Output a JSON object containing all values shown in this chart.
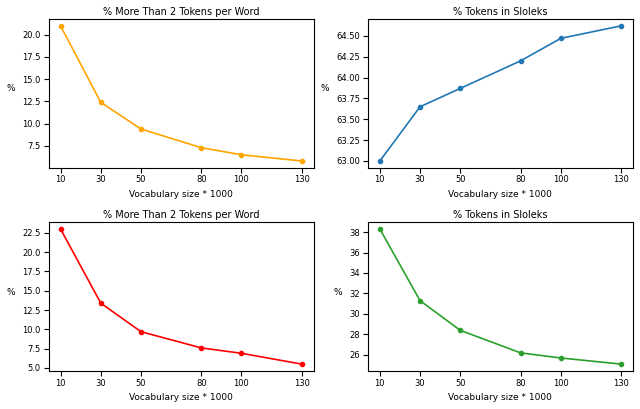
{
  "vocab_sizes": [
    10,
    30,
    50,
    80,
    100,
    130
  ],
  "top_left": {
    "title": "% More Than 2 Tokens per Word",
    "xlabel": "Vocabulary size * 1000",
    "ylabel": "%",
    "color": "#FFA500",
    "values": [
      21.0,
      12.4,
      9.4,
      7.3,
      6.5,
      5.8
    ]
  },
  "top_right": {
    "title": "% Tokens in Sloleks",
    "xlabel": "Vocabulary size * 1000",
    "ylabel": "%",
    "color": "#1f77b4",
    "values": [
      63.0,
      63.65,
      63.87,
      64.2,
      64.47,
      64.62
    ]
  },
  "bottom_left": {
    "title": "% More Than 2 Tokens per Word",
    "xlabel": "Vocabulary size * 1000",
    "ylabel": "%",
    "color": "#FF0000",
    "values": [
      23.0,
      13.4,
      9.7,
      7.6,
      6.9,
      5.5
    ]
  },
  "bottom_right": {
    "title": "% Tokens in Sloleks",
    "xlabel": "Vocabulary size * 1000",
    "ylabel": "%",
    "color": "#2ca02c",
    "values": [
      38.3,
      31.3,
      28.4,
      26.2,
      25.7,
      25.1
    ]
  }
}
